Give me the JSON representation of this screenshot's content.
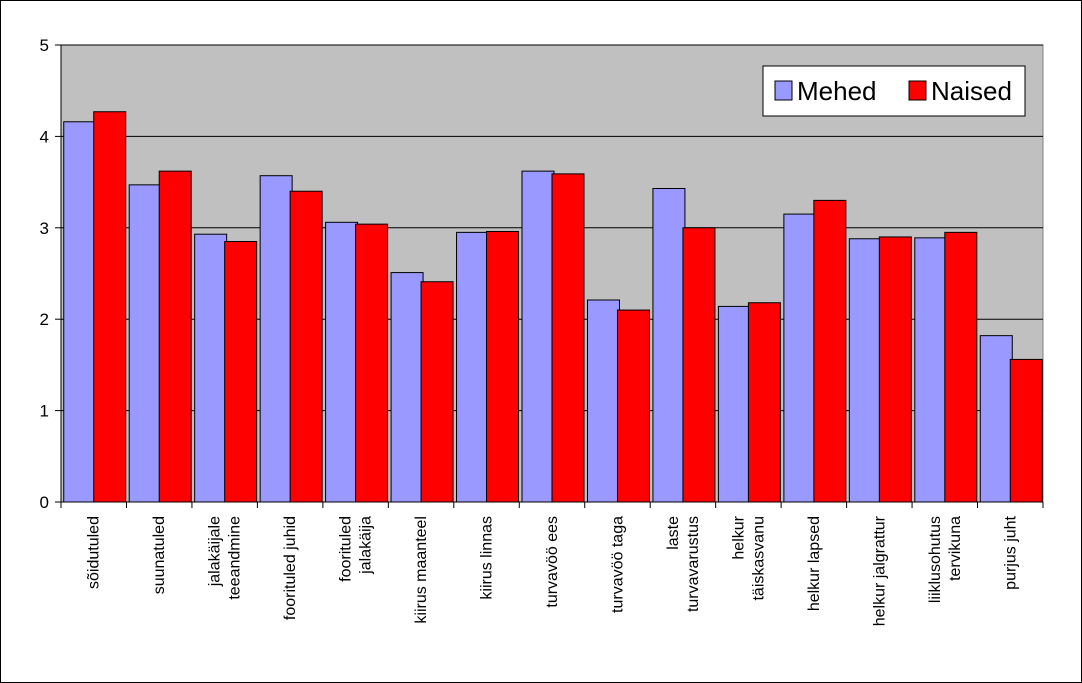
{
  "chart_data": {
    "type": "bar",
    "categories": [
      [
        "sõidutuled"
      ],
      [
        "suunatuled"
      ],
      [
        "jalakäijale",
        "teeandmine"
      ],
      [
        "foorituled juhid"
      ],
      [
        "foorituled",
        "jalakäija"
      ],
      [
        "kiirus maanteel"
      ],
      [
        "kiirus linnas"
      ],
      [
        "turvavöö ees"
      ],
      [
        "turvavöö taga"
      ],
      [
        "laste",
        "turvavarustus"
      ],
      [
        "helkur",
        "täiskasvanu"
      ],
      [
        "helkur lapsed"
      ],
      [
        "helkur jalgrattur"
      ],
      [
        "liiklusohutus",
        "tervikuna"
      ],
      [
        "purjus juht"
      ]
    ],
    "series": [
      {
        "name": "Mehed",
        "color": "#9999ff",
        "values": [
          4.16,
          3.47,
          2.93,
          3.57,
          3.06,
          2.51,
          2.95,
          3.62,
          2.21,
          3.43,
          2.14,
          3.15,
          2.88,
          2.89,
          1.82
        ]
      },
      {
        "name": "Naised",
        "color": "#ff0000",
        "values": [
          4.27,
          3.62,
          2.85,
          3.4,
          3.04,
          2.41,
          2.96,
          3.59,
          2.1,
          3.0,
          2.18,
          3.3,
          2.9,
          2.95,
          1.56
        ]
      }
    ],
    "ylim": [
      0,
      5
    ],
    "yticks": [
      "0",
      "1",
      "2",
      "3",
      "4",
      "5"
    ],
    "grid": true,
    "legend_position": "top-right",
    "plot_background": "#c0c0c0"
  }
}
